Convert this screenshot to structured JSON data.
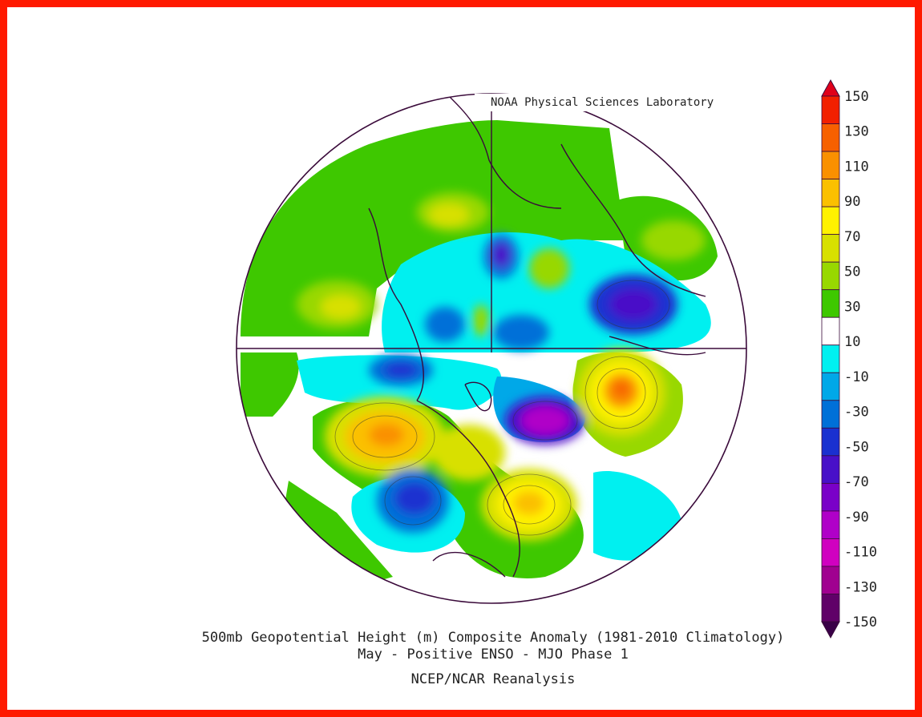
{
  "credit": "NOAA Physical Sciences Laboratory",
  "title_line1": "500mb Geopotential Height (m) Composite Anomaly (1981-2010 Climatology)",
  "title_line2": "May - Positive ENSO - MJO Phase 1",
  "title_line3": "NCEP/NCAR Reanalysis",
  "colorbar": {
    "labels": [
      "150",
      "130",
      "110",
      "90",
      "70",
      "50",
      "30",
      "10",
      "-10",
      "-30",
      "-50",
      "-70",
      "-90",
      "-110",
      "-130",
      "-150"
    ],
    "colors": [
      "#e0001a",
      "#f22000",
      "#f76000",
      "#fa9000",
      "#fbc000",
      "#fff200",
      "#d8e000",
      "#98d800",
      "#3ec800",
      "#ffffff",
      "#00f0f0",
      "#00a8e8",
      "#0070d8",
      "#1a30d0",
      "#4810c8",
      "#7a00c8",
      "#b000c8",
      "#d000c0",
      "#a00090",
      "#600068",
      "#3a0048"
    ]
  },
  "frame_color": "#ff1a00"
}
